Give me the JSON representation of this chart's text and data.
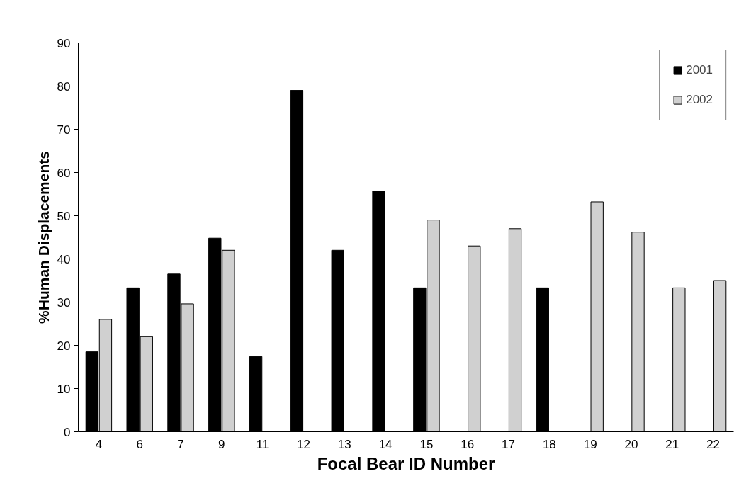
{
  "chart_data": {
    "type": "bar",
    "xlabel": "Focal Bear ID Number",
    "ylabel": "%Human Displacements",
    "categories": [
      "4",
      "6",
      "7",
      "9",
      "11",
      "12",
      "13",
      "14",
      "15",
      "16",
      "17",
      "18",
      "19",
      "20",
      "21",
      "22"
    ],
    "series": [
      {
        "name": "2001",
        "color": "#000000",
        "values": [
          18.5,
          33.3,
          36.5,
          44.8,
          17.4,
          79,
          42,
          55.7,
          33.3,
          null,
          null,
          33.3,
          null,
          null,
          null,
          null
        ]
      },
      {
        "name": "2002",
        "color": "#d0d0d0",
        "values": [
          26,
          22,
          29.6,
          42,
          null,
          null,
          null,
          null,
          49,
          43,
          47,
          null,
          53.2,
          46.2,
          33.3,
          35
        ]
      }
    ],
    "ylim": [
      0,
      90
    ],
    "yticks": [
      0,
      10,
      20,
      30,
      40,
      50,
      60,
      70,
      80,
      90
    ],
    "grid": false,
    "legend": "top right"
  }
}
